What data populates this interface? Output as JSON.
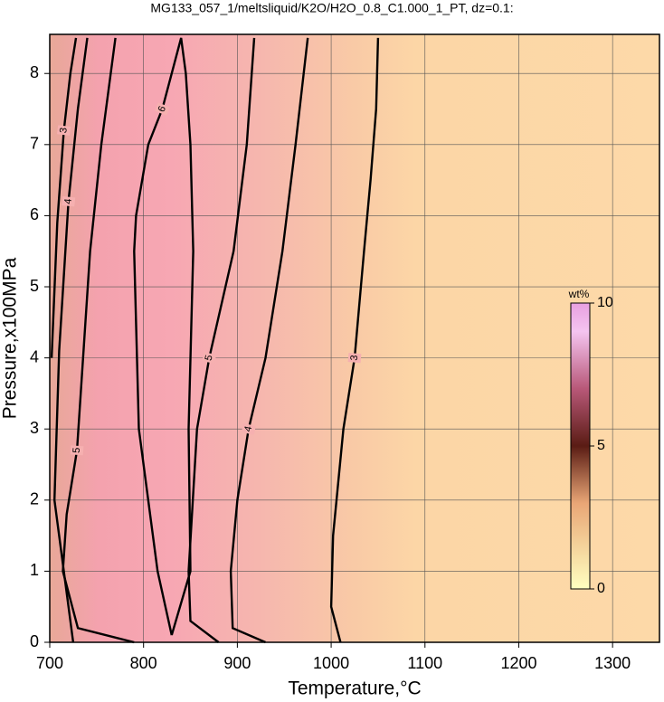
{
  "chart_data": {
    "type": "contour",
    "title": "MG133_057_1/meltsliquid/K2O/H2O_0.8_C1.000_1_PT, dz=0.1:",
    "x_label": "Temperature,°C",
    "y_label": "Pressure,x100MPa",
    "xlim": [
      700,
      1350
    ],
    "ylim": [
      0,
      8.55
    ],
    "xticks": [
      700,
      800,
      900,
      1000,
      1100,
      1200,
      1300
    ],
    "yticks": [
      0,
      1,
      2,
      3,
      4,
      5,
      6,
      7,
      8
    ],
    "grid": true,
    "colorbar": {
      "label": "wt%",
      "lim": [
        0,
        10
      ],
      "ticks": [
        0,
        5,
        10
      ]
    },
    "contours": [
      {
        "level": 3,
        "x": [
          1010,
          1000,
          1002,
          1013,
          1025,
          1035,
          1042,
          1048,
          1050
        ],
        "y": [
          0,
          0.5,
          1.5,
          3,
          4,
          5.5,
          6.5,
          7.5,
          8.5
        ]
      },
      {
        "level": 4,
        "x": [
          930,
          895,
          893,
          900,
          912,
          930,
          948,
          962,
          975
        ],
        "y": [
          0,
          0.2,
          1,
          2,
          3,
          4,
          5.5,
          7,
          8.5
        ]
      },
      {
        "level": 5,
        "x": [
          880,
          850,
          848,
          857,
          870,
          896,
          910,
          918
        ],
        "y": [
          0,
          0.3,
          1,
          3,
          4,
          5.5,
          7,
          8.5
        ]
      },
      {
        "level": 6,
        "x": [
          830,
          850,
          848,
          853,
          850,
          845,
          840,
          820,
          805,
          792,
          790,
          795,
          815,
          830
        ],
        "y": [
          0.1,
          1,
          3,
          5.5,
          7,
          8,
          8.5,
          7.5,
          7,
          6,
          5.5,
          3,
          1,
          0.1
        ]
      },
      {
        "level": 5,
        "x": [
          790,
          730,
          714,
          718,
          729,
          743,
          755,
          770
        ],
        "y": [
          0,
          0.2,
          1,
          1.8,
          2.7,
          5.5,
          7,
          8.5
        ]
      },
      {
        "level": 4,
        "x": [
          725,
          705,
          710,
          720,
          730,
          740
        ],
        "y": [
          0,
          2,
          4.1,
          6.2,
          7.5,
          8.5
        ]
      },
      {
        "level": 3,
        "x": [
          702,
          708,
          715,
          722,
          728
        ],
        "y": [
          4,
          5.9,
          7.2,
          8,
          8.5
        ]
      }
    ]
  }
}
